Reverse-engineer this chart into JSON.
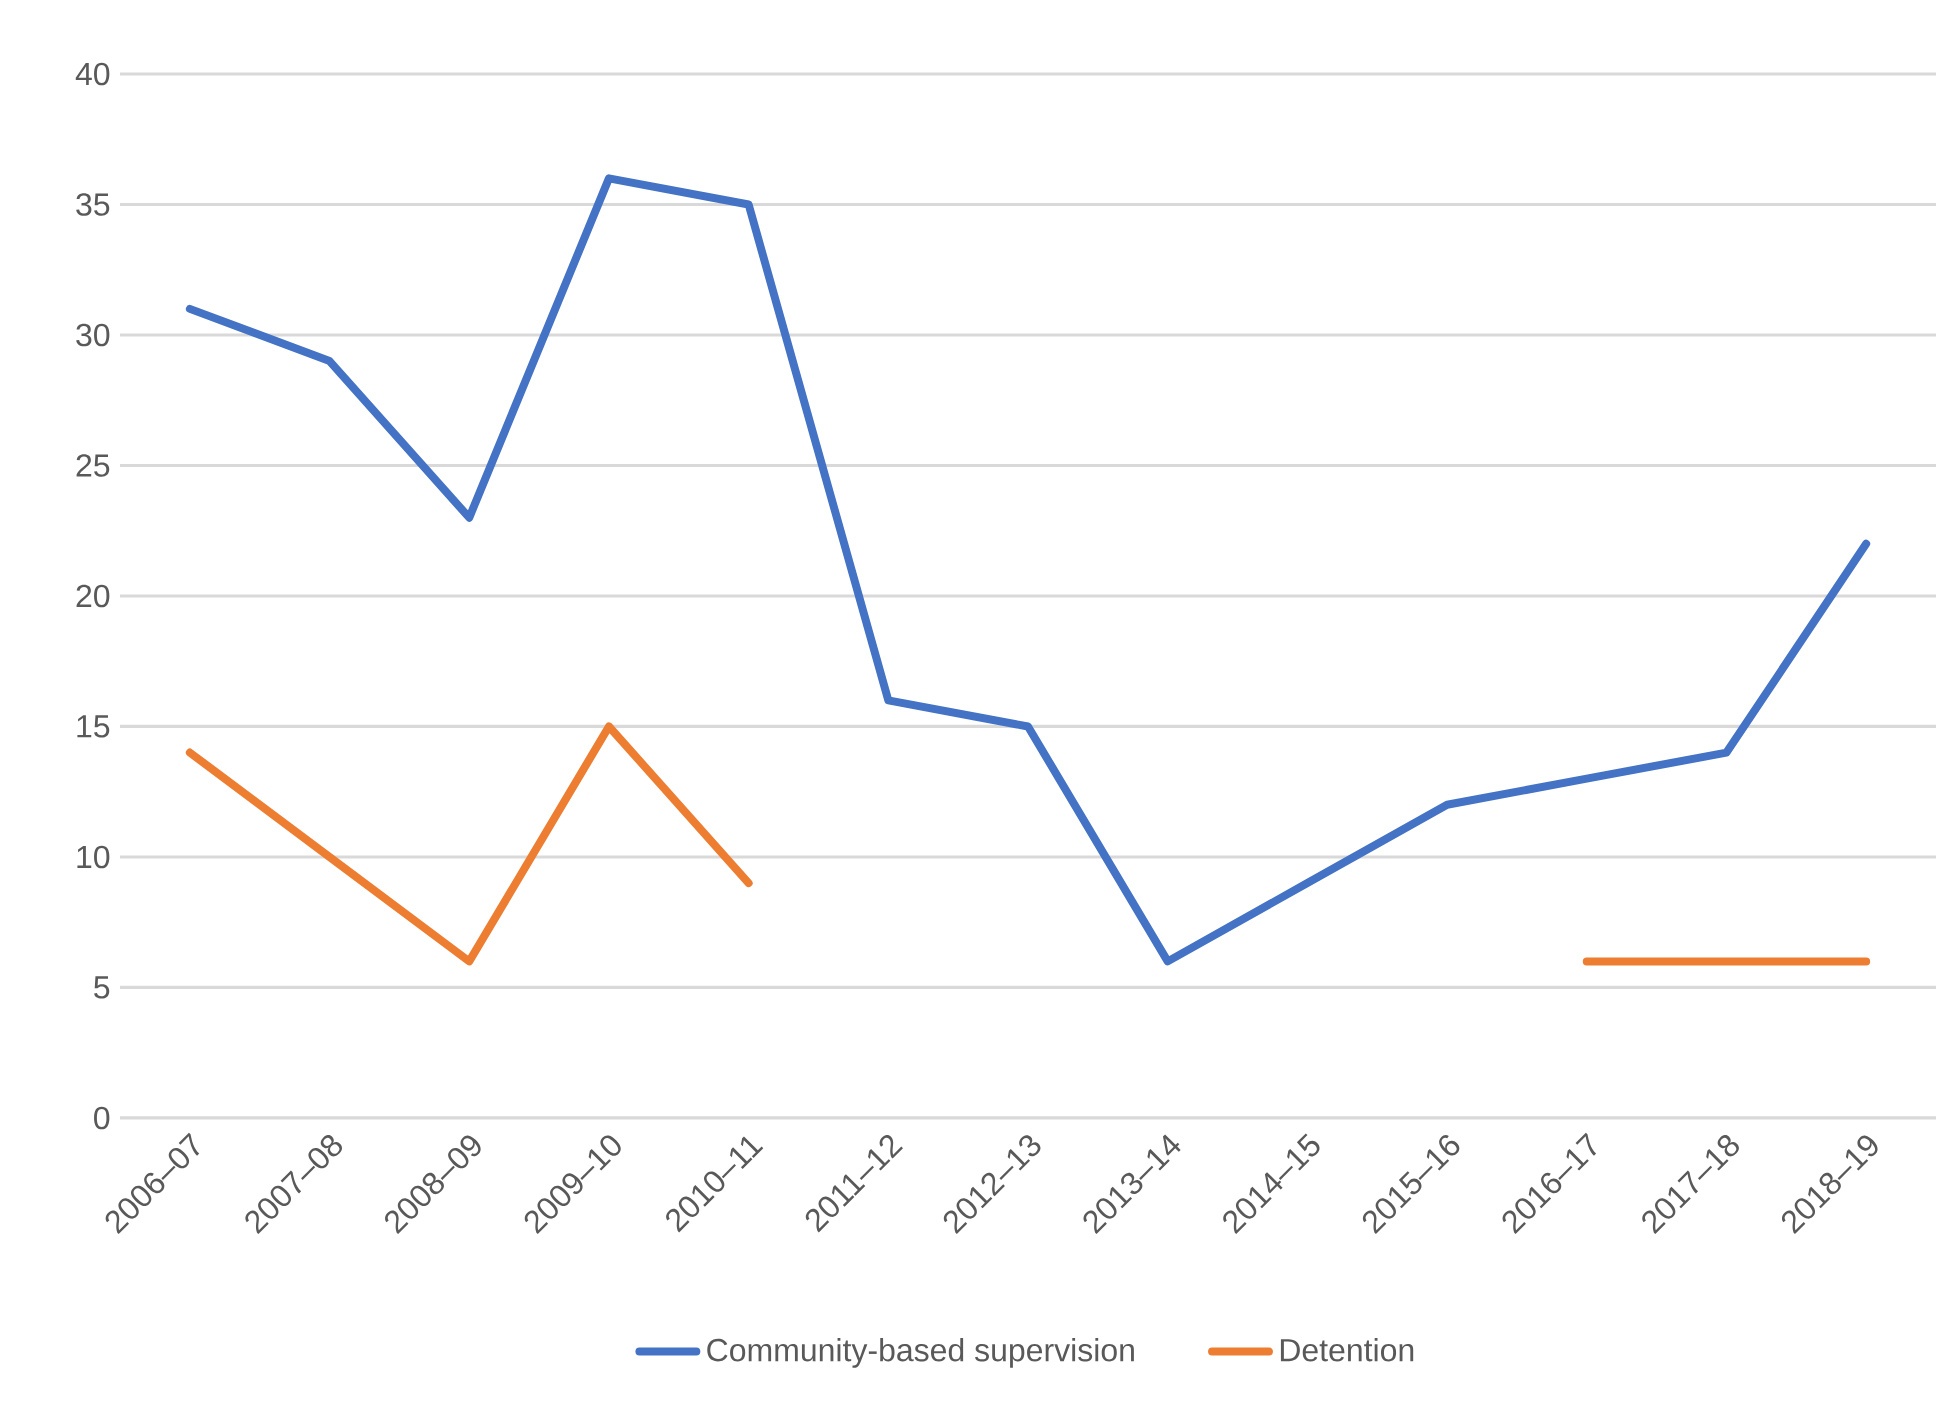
{
  "chart_data": {
    "type": "line",
    "categories": [
      "2006–07",
      "2007–08",
      "2008–09",
      "2009–10",
      "2010–11",
      "2011–12",
      "2012–13",
      "2013–14",
      "2014–15",
      "2015–16",
      "2016–17",
      "2017–18",
      "2018–19"
    ],
    "series": [
      {
        "name": "Community-based supervision",
        "color": "#4472c4",
        "values": [
          31,
          29,
          23,
          36,
          35,
          16,
          15,
          6,
          9,
          12,
          13,
          14,
          22
        ]
      },
      {
        "name": "Detention",
        "color": "#ed7d31",
        "values": [
          14,
          10,
          6,
          15,
          9,
          null,
          null,
          null,
          null,
          null,
          6,
          6,
          6
        ]
      }
    ],
    "ylim": [
      0,
      40
    ],
    "yticks": [
      0,
      5,
      10,
      15,
      20,
      25,
      30,
      35,
      40
    ],
    "grid": "y",
    "legend": "bottom",
    "marker": "none",
    "line_style": "solid"
  }
}
